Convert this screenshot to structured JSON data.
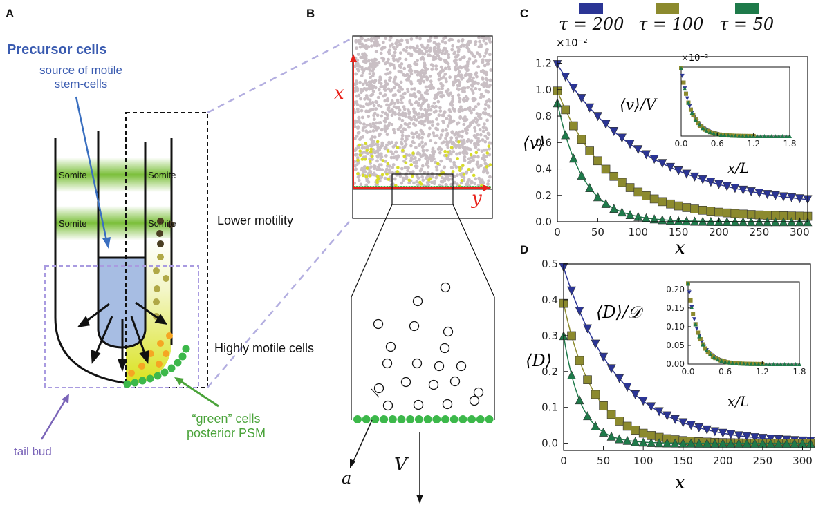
{
  "panel_labels": {
    "a": "A",
    "b": "B",
    "c": "C",
    "d": "D"
  },
  "panel_a": {
    "precursor_title": "Precursor cells",
    "precursor_sub1": "source of motile",
    "precursor_sub2": "stem-cells",
    "somite": "Somite",
    "lower_motility": "Lower motility",
    "highly_motile": "Highly motile cells",
    "green_cells_1": "“green” cells",
    "green_cells_2": "posterior PSM",
    "tail_bud": "tail bud",
    "colors": {
      "precursor": "#3a5bb0",
      "green": "#4aa33a",
      "tailbud": "#7a64b8",
      "somite": "#7bbf3a"
    }
  },
  "panel_b": {
    "axis_x": "x",
    "axis_y": "y",
    "label_a": "a",
    "label_V": "V"
  },
  "legend": {
    "items": [
      {
        "label": "τ = 200",
        "color": "#2b3595"
      },
      {
        "label": "τ = 100",
        "color": "#8c8a2e"
      },
      {
        "label": "τ = 50",
        "color": "#1e7a4a"
      }
    ]
  },
  "chart_data": [
    {
      "type": "scatter",
      "panel": "C",
      "ylabel": "⟨v⟩",
      "xlabel": "x",
      "annotation": "⟨v⟩/V",
      "yscale_note": "×10⁻²",
      "xlim": [
        0,
        310
      ],
      "ylim": [
        0,
        1.25
      ],
      "xticks": [
        0,
        50,
        100,
        150,
        200,
        250,
        300
      ],
      "yticks": [
        0.0,
        0.2,
        0.4,
        0.6,
        0.8,
        1.0,
        1.2
      ],
      "ytick_labels": [
        "0.0",
        "0.2",
        "0.4",
        "0.6",
        "0.8",
        "1.0",
        "1.2"
      ],
      "series": [
        {
          "name": "τ = 200",
          "marker": "triangle-down",
          "decay": 112,
          "y0": 1.19,
          "offset": 0.1,
          "xmax": 310
        },
        {
          "name": "τ = 100",
          "marker": "square",
          "decay": 62,
          "y0": 0.99,
          "offset": 0.035,
          "xmax": 310
        },
        {
          "name": "τ = 50",
          "marker": "triangle-up",
          "decay": 32,
          "y0": 0.9,
          "offset": 0.0,
          "xmax": 310
        }
      ],
      "inset": {
        "xlabel": "x/L",
        "yscale_note": "×10⁻²",
        "xlim": [
          0,
          1.8
        ],
        "xticks": [
          0.0,
          0.6,
          1.2,
          1.8
        ],
        "xtick_labels": [
          "0.0",
          "0.6",
          "1.2",
          "1.8"
        ]
      }
    },
    {
      "type": "scatter",
      "panel": "D",
      "ylabel": "⟨D⟩",
      "xlabel": "x",
      "annotation": "⟨D⟩/𝒟",
      "xlim": [
        0,
        310
      ],
      "ylim": [
        -0.02,
        0.5
      ],
      "xticks": [
        0,
        50,
        100,
        150,
        200,
        250,
        300
      ],
      "yticks": [
        0.0,
        0.1,
        0.2,
        0.3,
        0.4,
        0.5
      ],
      "ytick_labels": [
        "0.0",
        "0.1",
        "0.2",
        "0.3",
        "0.4",
        "0.5"
      ],
      "series": [
        {
          "name": "τ = 200",
          "marker": "triangle-down",
          "decay": 70,
          "y0": 0.49,
          "offset": 0.0
        },
        {
          "name": "τ = 100",
          "marker": "square",
          "decay": 38,
          "y0": 0.39,
          "offset": 0.0
        },
        {
          "name": "τ = 50",
          "marker": "triangle-up",
          "decay": 22,
          "y0": 0.3,
          "offset": 0.0
        }
      ],
      "inset": {
        "xlabel": "x/L",
        "xlim": [
          0,
          1.8
        ],
        "ylim": [
          0,
          0.22
        ],
        "xticks": [
          0.0,
          0.6,
          1.2,
          1.8
        ],
        "xtick_labels": [
          "0.0",
          "0.6",
          "1.2",
          "1.8"
        ],
        "yticks": [
          0.0,
          0.05,
          0.1,
          0.15,
          0.2
        ],
        "ytick_labels": [
          "0.00",
          "0.05",
          "0.10",
          "0.15",
          "0.20"
        ]
      }
    }
  ]
}
